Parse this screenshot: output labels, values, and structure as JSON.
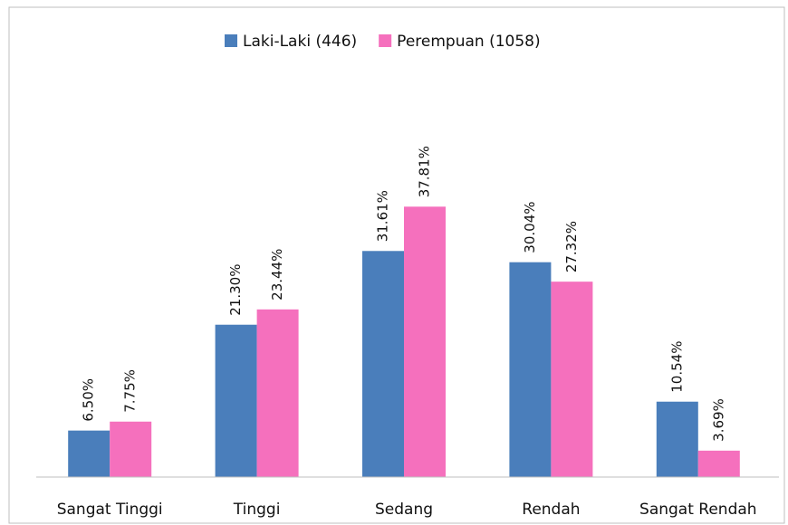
{
  "chart_data": {
    "type": "bar",
    "categories": [
      "Sangat Tinggi",
      "Tinggi",
      "Sedang",
      "Rendah",
      "Sangat Rendah"
    ],
    "series": [
      {
        "name": "Laki-Laki (446)",
        "color": "#4a7ebb",
        "values": [
          6.5,
          21.3,
          31.61,
          30.04,
          10.54
        ],
        "value_labels": [
          "6.50%",
          "21.30%",
          "31.61%",
          "30.04%",
          "10.54%"
        ]
      },
      {
        "name": "Perempuan (1058)",
        "color": "#f570bd",
        "values": [
          7.75,
          23.44,
          37.81,
          27.32,
          3.69
        ],
        "value_labels": [
          "7.75%",
          "23.44%",
          "37.81%",
          "27.32%",
          "3.69%"
        ]
      }
    ],
    "legend": "top"
  }
}
